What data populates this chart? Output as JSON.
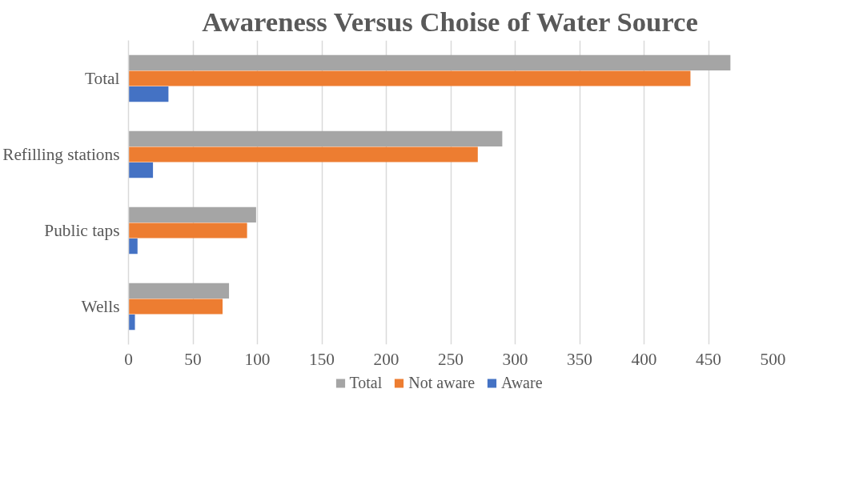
{
  "chart_data": {
    "type": "bar",
    "orientation": "horizontal",
    "title": "Awareness Versus Choise of Water Source",
    "categories": [
      "Total",
      "Refilling stations",
      "Public taps",
      "Wells"
    ],
    "series": [
      {
        "name": "Total",
        "color": "#a5a5a5",
        "values": [
          467,
          290,
          99,
          78
        ]
      },
      {
        "name": "Not aware",
        "color": "#ed7d31",
        "values": [
          436,
          271,
          92,
          73
        ]
      },
      {
        "name": "Aware",
        "color": "#4472c4",
        "values": [
          31,
          19,
          7,
          5
        ]
      }
    ],
    "xlim": [
      0,
      500
    ],
    "xticks": [
      0,
      50,
      100,
      150,
      200,
      250,
      300,
      350,
      400,
      450,
      500
    ],
    "grid": "x",
    "legend": "bottom"
  }
}
